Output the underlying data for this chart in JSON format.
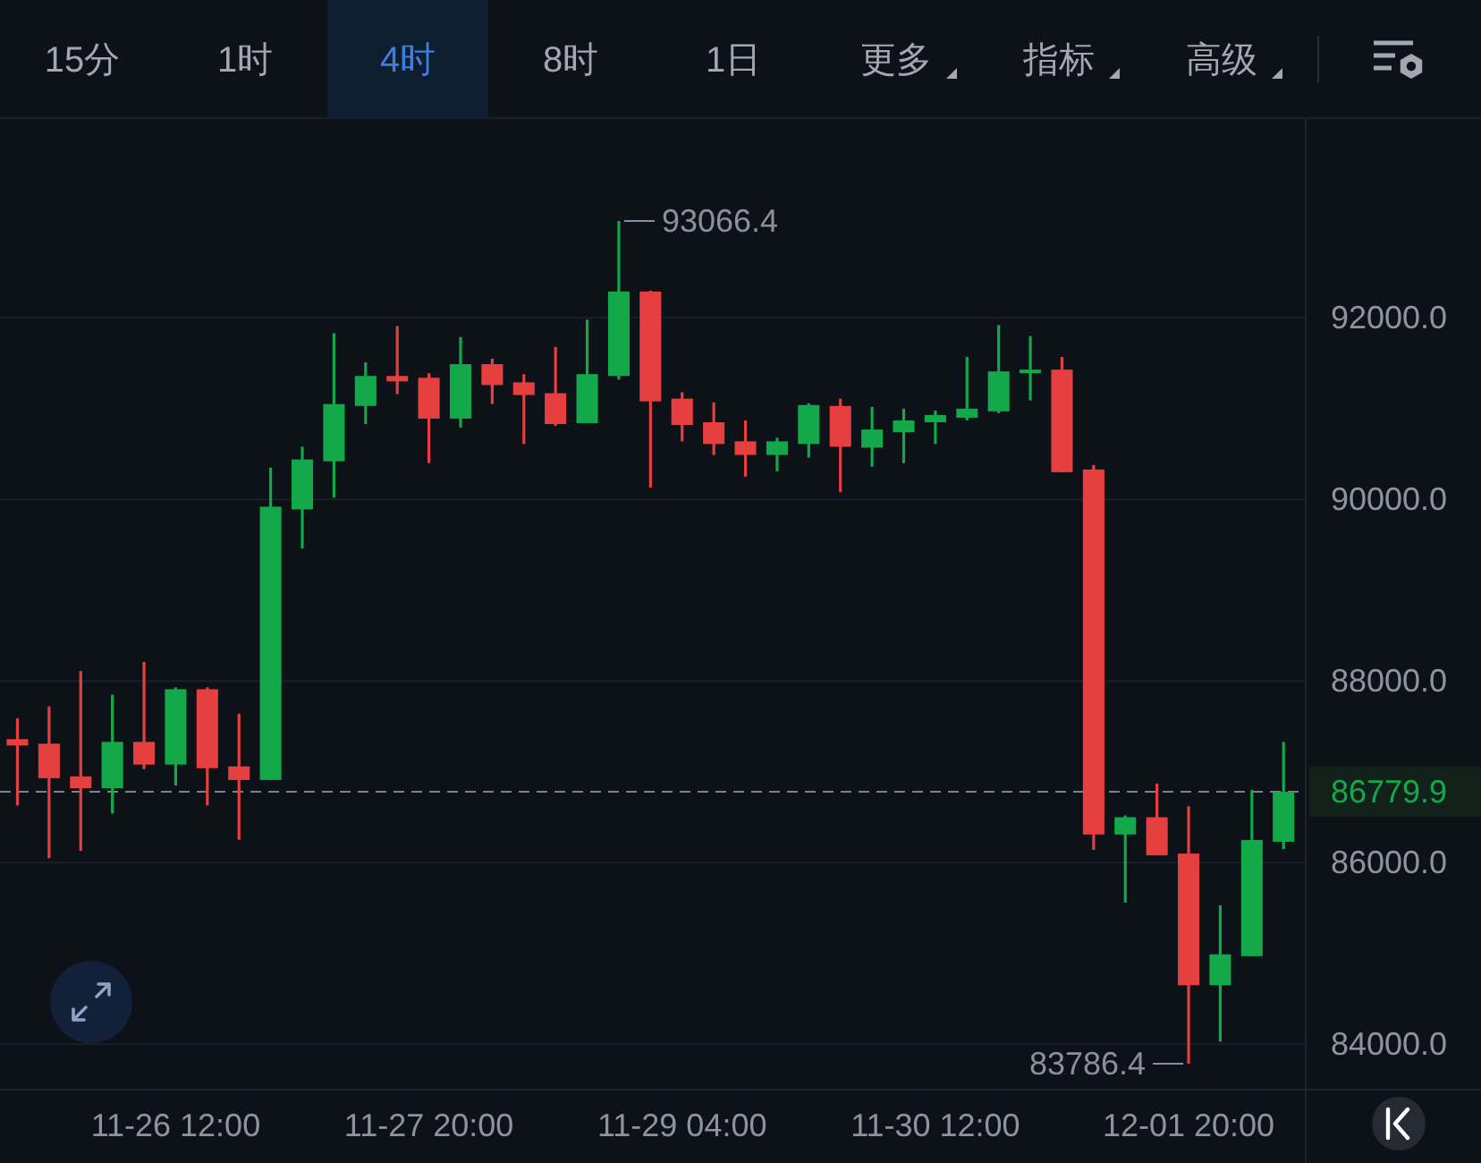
{
  "chart_data": {
    "type": "candlestick",
    "categories": [
      null,
      null,
      null,
      null,
      null,
      "11-26 12:00",
      null,
      null,
      null,
      null,
      null,
      null,
      null,
      "11-27 20:00",
      null,
      null,
      null,
      null,
      null,
      null,
      null,
      "11-29 04:00",
      null,
      null,
      null,
      null,
      null,
      null,
      null,
      "11-30 12:00",
      null,
      null,
      null,
      null,
      null,
      null,
      null,
      "12-01 20:00",
      null,
      null,
      null
    ],
    "ohlc": [
      [
        87360,
        87590,
        86630,
        87290
      ],
      [
        87310,
        87720,
        86050,
        86930
      ],
      [
        86950,
        88110,
        86130,
        86820
      ],
      [
        86820,
        87850,
        86540,
        87330
      ],
      [
        87330,
        88210,
        87030,
        87080
      ],
      [
        87080,
        87930,
        86850,
        87910
      ],
      [
        87910,
        87930,
        86630,
        87040
      ],
      [
        87060,
        87640,
        86250,
        86910
      ],
      [
        86910,
        90350,
        86910,
        89920
      ],
      [
        89890,
        90580,
        89460,
        90440
      ],
      [
        90420,
        91830,
        90020,
        91050
      ],
      [
        91030,
        91510,
        90830,
        91360
      ],
      [
        91360,
        91910,
        91160,
        91300
      ],
      [
        91340,
        91390,
        90400,
        90890
      ],
      [
        90890,
        91790,
        90790,
        91490
      ],
      [
        91490,
        91550,
        91050,
        91260
      ],
      [
        91290,
        91380,
        90610,
        91150
      ],
      [
        91170,
        91680,
        90810,
        90830
      ],
      [
        90840,
        91980,
        90840,
        91380
      ],
      [
        91360,
        93066.4,
        91320,
        92290
      ],
      [
        92290,
        92300,
        90130,
        91080
      ],
      [
        91110,
        91180,
        90640,
        90820
      ],
      [
        90850,
        91070,
        90490,
        90610
      ],
      [
        90640,
        90870,
        90250,
        90490
      ],
      [
        90490,
        90680,
        90310,
        90640
      ],
      [
        90610,
        91060,
        90460,
        91040
      ],
      [
        91030,
        91110,
        90080,
        90580
      ],
      [
        90570,
        91020,
        90360,
        90770
      ],
      [
        90740,
        91000,
        90400,
        90870
      ],
      [
        90850,
        90980,
        90610,
        90930
      ],
      [
        90900,
        91570,
        90870,
        91000
      ],
      [
        90970,
        91920,
        90950,
        91410
      ],
      [
        91390,
        91800,
        91090,
        91430
      ],
      [
        91430,
        91570,
        90300,
        90300
      ],
      [
        90330,
        90380,
        86140,
        86310
      ],
      [
        86310,
        86520,
        85560,
        86500
      ],
      [
        86500,
        86870,
        86080,
        86080
      ],
      [
        86100,
        86620,
        83786.4,
        84650
      ],
      [
        84650,
        85530,
        84030,
        84990
      ],
      [
        84970,
        86800,
        84970,
        86250
      ],
      [
        86230,
        87330,
        86150,
        86779.9
      ]
    ],
    "colors": [
      "#e5403f",
      "#e5403f",
      "#e5403f",
      "#13a84a",
      "#e5403f",
      "#13a84a",
      "#e5403f",
      "#e5403f",
      "#13a84a",
      "#13a84a",
      "#13a84a",
      "#13a84a",
      "#e5403f",
      "#e5403f",
      "#13a84a",
      "#e5403f",
      "#e5403f",
      "#e5403f",
      "#13a84a",
      "#13a84a",
      "#e5403f",
      "#e5403f",
      "#e5403f",
      "#e5403f",
      "#13a84a",
      "#13a84a",
      "#e5403f",
      "#13a84a",
      "#13a84a",
      "#13a84a",
      "#13a84a",
      "#13a84a",
      "#13a84a",
      "#e5403f",
      "#e5403f",
      "#13a84a",
      "#e5403f",
      "#e5403f",
      "#13a84a",
      "#13a84a",
      "#13a84a"
    ],
    "ylim": [
      83500,
      94200
    ],
    "yticks": [
      {
        "value": 84000,
        "label": "84000.0"
      },
      {
        "value": 86000,
        "label": "86000.0"
      },
      {
        "value": 88000,
        "label": "88000.0"
      },
      {
        "value": 90000,
        "label": "90000.0"
      },
      {
        "value": 92000,
        "label": "92000.0"
      }
    ],
    "grid": "y",
    "ref_lines": [
      {
        "axis": "y",
        "value": 86779.9,
        "label": "86779.9",
        "color": "#7d838c",
        "line_style": "dashed"
      }
    ],
    "annotations": [
      "15分",
      "1时",
      "4时",
      "8时",
      "1日",
      "更多",
      "指标",
      "高级",
      "93066.4",
      "83786.4"
    ]
  }
}
